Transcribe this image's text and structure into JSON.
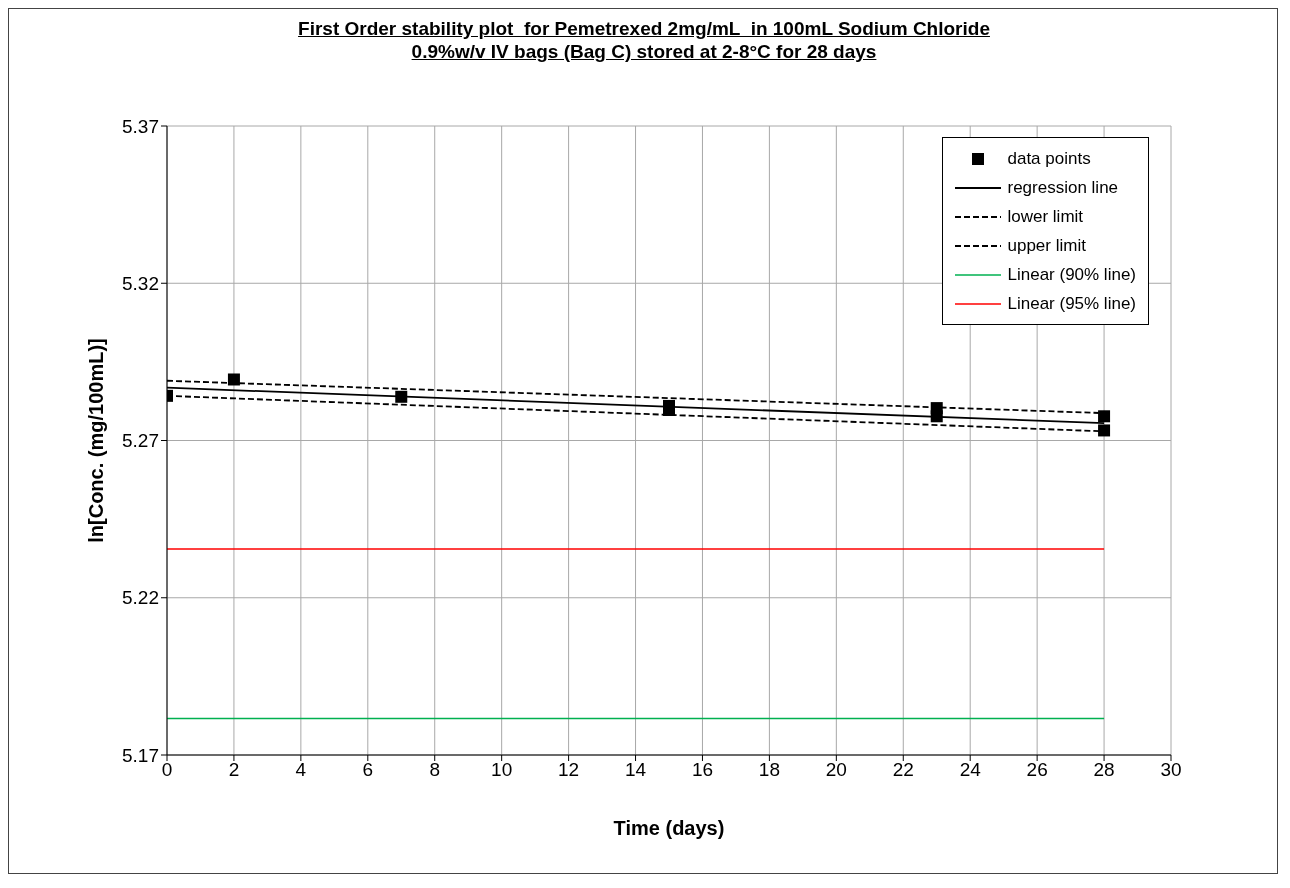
{
  "chart_data": {
    "type": "line",
    "title": "First Order stability plot  for Pemetrexed 2mg/mL  in 100mL Sodium Chloride\n0.9%w/v IV bags (Bag C) stored at 2-8°C for 28 days",
    "xlabel": "Time (days)",
    "ylabel": "ln[Conc. (mg/100mL)]",
    "xlim": [
      0,
      30
    ],
    "xticks": [
      0,
      2,
      4,
      6,
      8,
      10,
      12,
      14,
      16,
      18,
      20,
      22,
      24,
      26,
      28,
      30
    ],
    "ylim": [
      5.17,
      5.37
    ],
    "yticks": [
      5.17,
      5.22,
      5.27,
      5.32,
      5.37
    ],
    "grid": true,
    "legend": "top right",
    "series": [
      {
        "name": "data points",
        "type": "scatter",
        "marker": "square",
        "color": "#000000",
        "x": [
          0,
          2,
          7,
          15,
          15,
          23,
          23,
          28,
          28
        ],
        "values": [
          5.2842,
          5.2894,
          5.2839,
          5.281,
          5.2797,
          5.2803,
          5.2777,
          5.2777,
          5.2732
        ]
      },
      {
        "name": "regression line",
        "line_style": "solid",
        "color": "#000000",
        "x": [
          0,
          28
        ],
        "values": [
          5.2868,
          5.2755
        ]
      },
      {
        "name": "lower limit",
        "line_style": "dashed",
        "color": "#000000",
        "x": [
          0,
          28
        ],
        "values": [
          5.2842,
          5.2729
        ]
      },
      {
        "name": "upper limit",
        "line_style": "dashed",
        "color": "#000000",
        "x": [
          0,
          28
        ],
        "values": [
          5.289,
          5.2787
        ]
      },
      {
        "name": "Linear (90% line)",
        "line_style": "solid",
        "color": "#00b050",
        "x": [
          0,
          28
        ],
        "values": [
          5.1816,
          5.1816
        ]
      },
      {
        "name": "Linear (95% line)",
        "line_style": "solid",
        "color": "#ff0000",
        "x": [
          0,
          28
        ],
        "values": [
          5.2355,
          5.2355
        ]
      }
    ]
  }
}
